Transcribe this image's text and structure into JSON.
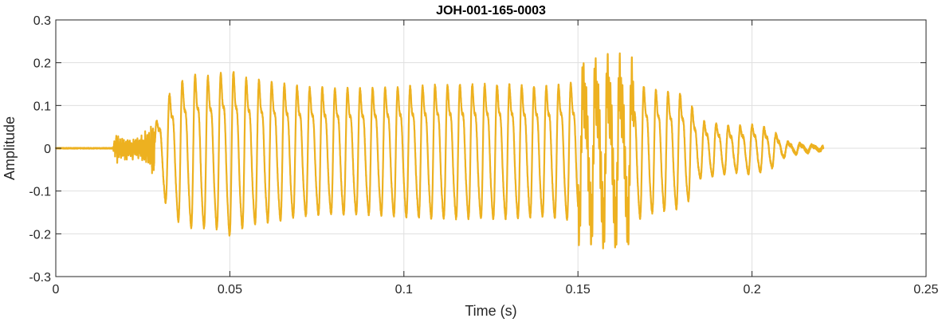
{
  "chart_data": {
    "type": "line",
    "title": "JOH-001-165-0003",
    "xlabel": "Time (s)",
    "ylabel": "Amplitude",
    "xlim": [
      0,
      0.25
    ],
    "ylim": [
      -0.3,
      0.3
    ],
    "xticks": [
      0,
      0.05,
      0.1,
      0.15,
      0.2,
      0.25
    ],
    "xtick_labels": [
      "0",
      "0.05",
      "0.1",
      "0.15",
      "0.2",
      "0.25"
    ],
    "yticks": [
      -0.3,
      -0.2,
      -0.1,
      0,
      0.1,
      0.2,
      0.3
    ],
    "ytick_labels": [
      "-0.3",
      "-0.2",
      "-0.1",
      "0",
      "0.1",
      "0.2",
      "0.3"
    ],
    "grid": true,
    "line_color": "#EDB120",
    "series": [
      {
        "values_description_only_for_render": null,
        "x_end": 0.2205,
        "onset": 0.0165,
        "voicing_start": 0.0285,
        "envelope": [
          [
            0.0,
            0.002
          ],
          [
            0.0165,
            0.004
          ],
          [
            0.017,
            0.03
          ],
          [
            0.02,
            0.02
          ],
          [
            0.025,
            0.025
          ],
          [
            0.029,
            0.07
          ],
          [
            0.031,
            0.12
          ],
          [
            0.035,
            0.17
          ],
          [
            0.04,
            0.19
          ],
          [
            0.045,
            0.185
          ],
          [
            0.05,
            0.205
          ],
          [
            0.055,
            0.18
          ],
          [
            0.06,
            0.175
          ],
          [
            0.07,
            0.16
          ],
          [
            0.08,
            0.155
          ],
          [
            0.09,
            0.155
          ],
          [
            0.1,
            0.16
          ],
          [
            0.11,
            0.165
          ],
          [
            0.12,
            0.165
          ],
          [
            0.13,
            0.165
          ],
          [
            0.14,
            0.16
          ],
          [
            0.15,
            0.17
          ],
          [
            0.16,
            0.185
          ],
          [
            0.165,
            0.175
          ],
          [
            0.17,
            0.155
          ],
          [
            0.18,
            0.14
          ],
          [
            0.182,
            0.12
          ],
          [
            0.185,
            0.07
          ],
          [
            0.195,
            0.055
          ],
          [
            0.2,
            0.06
          ],
          [
            0.205,
            0.05
          ],
          [
            0.21,
            0.015
          ],
          [
            0.2205,
            0.004
          ]
        ],
        "period_ms_start": 3.7,
        "period_ms_end": 3.4
      }
    ]
  }
}
